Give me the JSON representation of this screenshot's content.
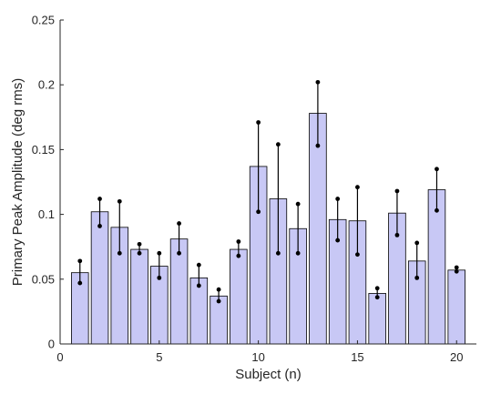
{
  "chart_data": {
    "type": "bar",
    "xlabel": "Subject (n)",
    "ylabel": "Primary Peak Amplitude (deg rms)",
    "xlim": [
      0,
      21
    ],
    "ylim": [
      0,
      0.25
    ],
    "xticks": [
      0,
      5,
      10,
      15,
      20
    ],
    "xtick_labels": [
      "0",
      "5",
      "10",
      "15",
      "20"
    ],
    "yticks": [
      0,
      0.05,
      0.1,
      0.15,
      0.2,
      0.25
    ],
    "ytick_labels": [
      "0",
      "0.05",
      "0.1",
      "0.15",
      "0.2",
      "0.25"
    ],
    "grid": false,
    "bar_color": "#c8c8f5",
    "bar_edge_color": "#000000",
    "subjects": [
      1,
      2,
      3,
      4,
      5,
      6,
      7,
      8,
      9,
      10,
      11,
      12,
      13,
      14,
      15,
      16,
      17,
      18,
      19,
      20
    ],
    "values": [
      0.055,
      0.102,
      0.09,
      0.073,
      0.06,
      0.081,
      0.051,
      0.037,
      0.073,
      0.137,
      0.112,
      0.089,
      0.178,
      0.096,
      0.095,
      0.039,
      0.101,
      0.064,
      0.119,
      0.057
    ],
    "error_low": [
      0.047,
      0.091,
      0.07,
      0.07,
      0.051,
      0.07,
      0.045,
      0.033,
      0.068,
      0.102,
      0.07,
      0.07,
      0.153,
      0.08,
      0.069,
      0.036,
      0.084,
      0.051,
      0.103,
      0.056
    ],
    "error_high": [
      0.064,
      0.112,
      0.11,
      0.077,
      0.07,
      0.093,
      0.061,
      0.042,
      0.079,
      0.171,
      0.154,
      0.108,
      0.202,
      0.112,
      0.121,
      0.043,
      0.118,
      0.078,
      0.135,
      0.059
    ]
  }
}
